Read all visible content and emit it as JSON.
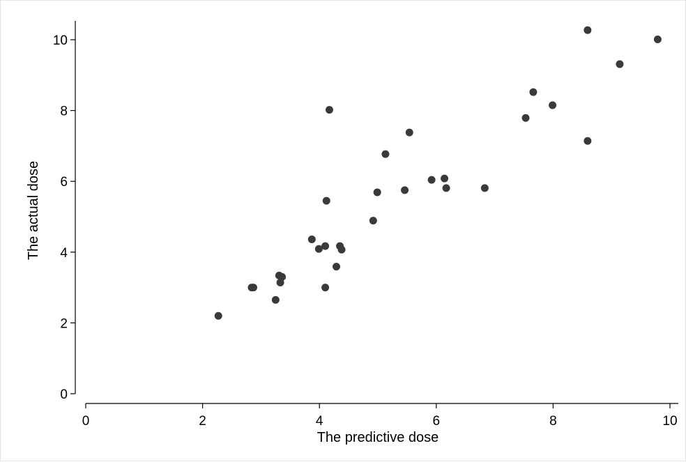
{
  "chart_data": {
    "type": "scatter",
    "title": "",
    "xlabel": "The predictive dose",
    "ylabel": "The actual dose",
    "xlim": [
      0,
      10
    ],
    "ylim": [
      0,
      10
    ],
    "xticks": [
      0,
      2,
      4,
      6,
      8,
      10
    ],
    "yticks": [
      0,
      2,
      4,
      6,
      8,
      10
    ],
    "grid": false,
    "legend": "none",
    "marker_color": "#3a3a3a",
    "points": [
      {
        "x": 2.27,
        "y": 2.2
      },
      {
        "x": 2.84,
        "y": 3.0
      },
      {
        "x": 2.87,
        "y": 3.0
      },
      {
        "x": 3.25,
        "y": 2.65
      },
      {
        "x": 3.31,
        "y": 3.34
      },
      {
        "x": 3.33,
        "y": 3.14
      },
      {
        "x": 3.36,
        "y": 3.3
      },
      {
        "x": 3.87,
        "y": 4.36
      },
      {
        "x": 3.99,
        "y": 4.09
      },
      {
        "x": 4.1,
        "y": 3.0
      },
      {
        "x": 4.1,
        "y": 4.17
      },
      {
        "x": 4.12,
        "y": 5.45
      },
      {
        "x": 4.17,
        "y": 8.02
      },
      {
        "x": 4.29,
        "y": 3.59
      },
      {
        "x": 4.35,
        "y": 4.17
      },
      {
        "x": 4.38,
        "y": 4.07
      },
      {
        "x": 4.92,
        "y": 4.89
      },
      {
        "x": 4.99,
        "y": 5.69
      },
      {
        "x": 5.13,
        "y": 6.77
      },
      {
        "x": 5.46,
        "y": 5.75
      },
      {
        "x": 5.54,
        "y": 7.38
      },
      {
        "x": 5.92,
        "y": 6.04
      },
      {
        "x": 6.14,
        "y": 6.08
      },
      {
        "x": 6.17,
        "y": 5.81
      },
      {
        "x": 6.83,
        "y": 5.81
      },
      {
        "x": 7.53,
        "y": 7.79
      },
      {
        "x": 7.66,
        "y": 8.52
      },
      {
        "x": 7.99,
        "y": 8.15
      },
      {
        "x": 8.59,
        "y": 7.14
      },
      {
        "x": 8.59,
        "y": 10.27
      },
      {
        "x": 9.14,
        "y": 9.31
      },
      {
        "x": 9.79,
        "y": 10.01
      }
    ]
  }
}
